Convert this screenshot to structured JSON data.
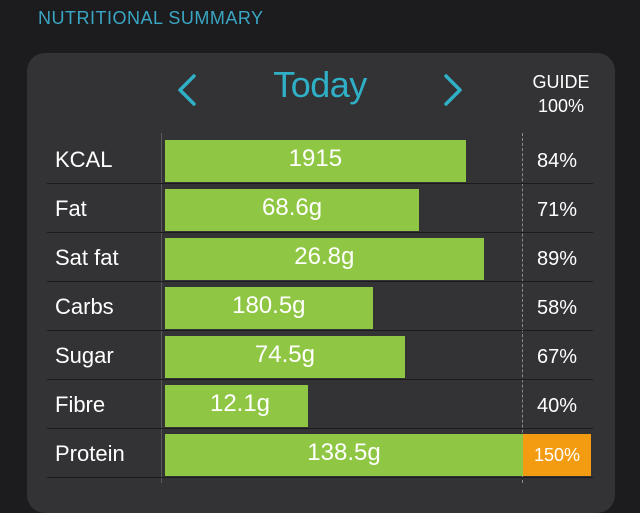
{
  "header": {
    "title": "NUTRITIONAL SUMMARY"
  },
  "nav": {
    "day_label": "Today",
    "prev_icon": "chevron-left-icon",
    "next_icon": "chevron-right-icon"
  },
  "guide": {
    "label": "GUIDE",
    "percent": "100%"
  },
  "colors": {
    "accent": "#2fb0c6",
    "bar": "#8fc744",
    "warning": "#f39c12",
    "card": "#333336",
    "background": "#1c1c1e"
  },
  "nutrients": [
    {
      "label": "KCAL",
      "value": "1915",
      "percent": "84%",
      "fraction": 0.84,
      "over": false
    },
    {
      "label": "Fat",
      "value": "68.6g",
      "percent": "71%",
      "fraction": 0.71,
      "over": false
    },
    {
      "label": "Sat fat",
      "value": "26.8g",
      "percent": "89%",
      "fraction": 0.89,
      "over": false
    },
    {
      "label": "Carbs",
      "value": "180.5g",
      "percent": "58%",
      "fraction": 0.58,
      "over": false
    },
    {
      "label": "Sugar",
      "value": "74.5g",
      "percent": "67%",
      "fraction": 0.67,
      "over": false
    },
    {
      "label": "Fibre",
      "value": "12.1g",
      "percent": "40%",
      "fraction": 0.4,
      "over": false
    },
    {
      "label": "Protein",
      "value": "138.5g",
      "percent": "150%",
      "fraction": 1.5,
      "over": true
    }
  ]
}
